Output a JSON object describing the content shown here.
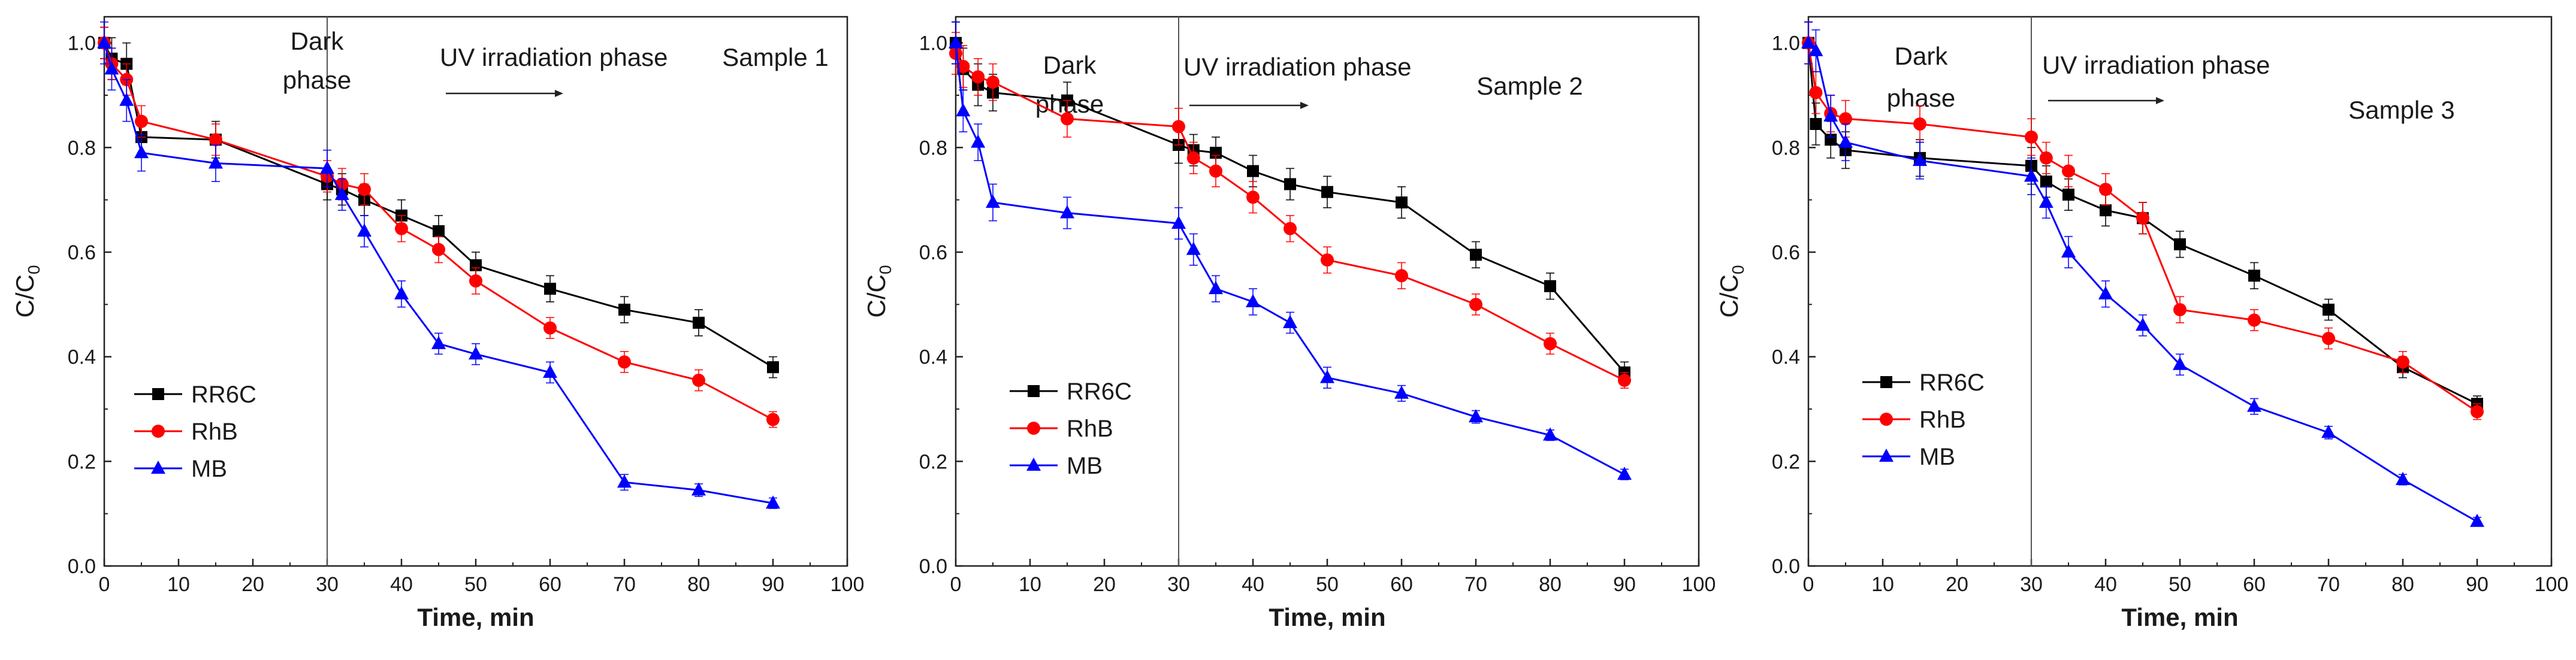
{
  "chart_data": [
    {
      "type": "line",
      "title": "Sample 1",
      "xlabel": "Time, min",
      "ylabel": "C/C",
      "ylabel_sub": "0",
      "xlim": [
        0,
        100
      ],
      "ylim": [
        0,
        1.05
      ],
      "xticks": [
        0,
        10,
        20,
        30,
        40,
        50,
        60,
        70,
        80,
        90,
        100
      ],
      "yticks": [
        0.0,
        0.2,
        0.4,
        0.6,
        0.8,
        1.0
      ],
      "phase_boundary_x": 30,
      "annotations": {
        "dark": [
          "Dark",
          "phase"
        ],
        "uv": "UV irradiation phase",
        "sample": "Sample 1"
      },
      "legend_position": "lower-left",
      "series": [
        {
          "name": "RR6C",
          "color": "#000000",
          "marker": "square",
          "x": [
            0,
            1,
            3,
            5,
            15,
            30,
            32,
            35,
            40,
            45,
            50,
            60,
            70,
            80,
            90
          ],
          "y": [
            1.0,
            0.97,
            0.96,
            0.82,
            0.815,
            0.73,
            0.72,
            0.7,
            0.67,
            0.64,
            0.575,
            0.53,
            0.49,
            0.465,
            0.38
          ],
          "err": [
            0.03,
            0.04,
            0.04,
            0.03,
            0.035,
            0.03,
            0.03,
            0.03,
            0.03,
            0.03,
            0.025,
            0.025,
            0.025,
            0.025,
            0.02
          ]
        },
        {
          "name": "RhB",
          "color": "#ff0000",
          "marker": "circle",
          "x": [
            0,
            1,
            3,
            5,
            15,
            30,
            32,
            35,
            40,
            45,
            50,
            60,
            70,
            80,
            90
          ],
          "y": [
            1.0,
            0.96,
            0.93,
            0.85,
            0.815,
            0.745,
            0.73,
            0.72,
            0.645,
            0.605,
            0.545,
            0.455,
            0.39,
            0.355,
            0.28
          ],
          "err": [
            0.03,
            0.03,
            0.03,
            0.03,
            0.03,
            0.03,
            0.03,
            0.03,
            0.025,
            0.025,
            0.025,
            0.02,
            0.02,
            0.02,
            0.015
          ]
        },
        {
          "name": "MB",
          "color": "#0000ff",
          "marker": "triangle",
          "x": [
            0,
            1,
            3,
            5,
            15,
            30,
            32,
            35,
            40,
            45,
            50,
            60,
            70,
            80,
            90
          ],
          "y": [
            1.0,
            0.95,
            0.89,
            0.79,
            0.77,
            0.76,
            0.71,
            0.64,
            0.52,
            0.425,
            0.405,
            0.37,
            0.16,
            0.145,
            0.12
          ],
          "err": [
            0.04,
            0.04,
            0.04,
            0.035,
            0.035,
            0.035,
            0.03,
            0.03,
            0.025,
            0.02,
            0.02,
            0.02,
            0.015,
            0.012,
            0.01
          ]
        }
      ]
    },
    {
      "type": "line",
      "title": "Sample 2",
      "xlabel": "Time, min",
      "ylabel": "C/C",
      "ylabel_sub": "0",
      "xlim": [
        0,
        100
      ],
      "ylim": [
        0,
        1.05
      ],
      "xticks": [
        0,
        10,
        20,
        30,
        40,
        50,
        60,
        70,
        80,
        90,
        100
      ],
      "yticks": [
        0.0,
        0.2,
        0.4,
        0.6,
        0.8,
        1.0
      ],
      "phase_boundary_x": 30,
      "annotations": {
        "dark": [
          "Dark",
          "phase"
        ],
        "uv": "UV irradiation phase",
        "sample": "Sample 2"
      },
      "legend_position": "lower-left",
      "series": [
        {
          "name": "RR6C",
          "color": "#000000",
          "marker": "square",
          "x": [
            0,
            1,
            3,
            5,
            15,
            30,
            32,
            35,
            40,
            45,
            50,
            60,
            70,
            80,
            90
          ],
          "y": [
            1.0,
            0.95,
            0.92,
            0.905,
            0.89,
            0.805,
            0.795,
            0.79,
            0.755,
            0.73,
            0.715,
            0.695,
            0.595,
            0.535,
            0.37
          ],
          "err": [
            0.04,
            0.04,
            0.04,
            0.035,
            0.035,
            0.035,
            0.03,
            0.03,
            0.03,
            0.03,
            0.03,
            0.03,
            0.025,
            0.025,
            0.02
          ]
        },
        {
          "name": "RhB",
          "color": "#ff0000",
          "marker": "circle",
          "x": [
            0,
            1,
            3,
            5,
            15,
            30,
            32,
            35,
            40,
            45,
            50,
            60,
            70,
            80,
            90
          ],
          "y": [
            0.98,
            0.955,
            0.935,
            0.925,
            0.855,
            0.84,
            0.78,
            0.755,
            0.705,
            0.645,
            0.585,
            0.555,
            0.5,
            0.425,
            0.355
          ],
          "err": [
            0.04,
            0.04,
            0.035,
            0.035,
            0.035,
            0.035,
            0.03,
            0.03,
            0.03,
            0.025,
            0.025,
            0.025,
            0.02,
            0.02,
            0.015
          ]
        },
        {
          "name": "MB",
          "color": "#0000ff",
          "marker": "triangle",
          "x": [
            0,
            1,
            3,
            5,
            15,
            30,
            32,
            35,
            40,
            45,
            50,
            60,
            70,
            80,
            90
          ],
          "y": [
            1.0,
            0.87,
            0.81,
            0.695,
            0.675,
            0.655,
            0.605,
            0.53,
            0.505,
            0.465,
            0.36,
            0.33,
            0.285,
            0.25,
            0.175
          ],
          "err": [
            0.04,
            0.04,
            0.035,
            0.035,
            0.03,
            0.03,
            0.03,
            0.025,
            0.025,
            0.02,
            0.02,
            0.015,
            0.012,
            0.01,
            0.01
          ]
        }
      ]
    },
    {
      "type": "line",
      "title": "Sample 3",
      "xlabel": "Time, min",
      "ylabel": "C/C",
      "ylabel_sub": "0",
      "xlim": [
        0,
        100
      ],
      "ylim": [
        0,
        1.05
      ],
      "xticks": [
        0,
        10,
        20,
        30,
        40,
        50,
        60,
        70,
        80,
        90,
        100
      ],
      "yticks": [
        0.0,
        0.2,
        0.4,
        0.6,
        0.8,
        1.0
      ],
      "phase_boundary_x": 30,
      "annotations": {
        "dark": [
          "Dark",
          "phase"
        ],
        "uv": "UV irradiation phase",
        "sample": "Sample 3"
      },
      "legend_position": "lower-left",
      "series": [
        {
          "name": "RR6C",
          "color": "#000000",
          "marker": "square",
          "x": [
            0,
            1,
            3,
            5,
            15,
            30,
            32,
            35,
            40,
            45,
            50,
            60,
            70,
            80,
            90
          ],
          "y": [
            1.0,
            0.845,
            0.815,
            0.795,
            0.78,
            0.765,
            0.735,
            0.71,
            0.68,
            0.665,
            0.615,
            0.555,
            0.49,
            0.38,
            0.31
          ],
          "err": [
            0.04,
            0.04,
            0.035,
            0.035,
            0.035,
            0.035,
            0.03,
            0.03,
            0.03,
            0.03,
            0.025,
            0.025,
            0.02,
            0.02,
            0.015
          ]
        },
        {
          "name": "RhB",
          "color": "#ff0000",
          "marker": "circle",
          "x": [
            0,
            1,
            3,
            5,
            15,
            30,
            32,
            35,
            40,
            45,
            50,
            60,
            70,
            80,
            90
          ],
          "y": [
            1.0,
            0.905,
            0.865,
            0.855,
            0.845,
            0.82,
            0.78,
            0.755,
            0.72,
            0.665,
            0.49,
            0.47,
            0.435,
            0.39,
            0.295
          ],
          "err": [
            0.04,
            0.04,
            0.035,
            0.035,
            0.035,
            0.035,
            0.03,
            0.03,
            0.03,
            0.03,
            0.025,
            0.02,
            0.02,
            0.02,
            0.015
          ]
        },
        {
          "name": "MB",
          "color": "#0000ff",
          "marker": "triangle",
          "x": [
            0,
            1,
            3,
            5,
            15,
            30,
            32,
            35,
            40,
            45,
            50,
            60,
            70,
            80,
            90
          ],
          "y": [
            1.0,
            0.985,
            0.86,
            0.81,
            0.775,
            0.745,
            0.695,
            0.6,
            0.52,
            0.46,
            0.385,
            0.305,
            0.255,
            0.165,
            0.085
          ],
          "err": [
            0.04,
            0.04,
            0.04,
            0.035,
            0.035,
            0.035,
            0.03,
            0.03,
            0.025,
            0.02,
            0.02,
            0.015,
            0.012,
            0.01,
            0.008
          ]
        }
      ]
    }
  ]
}
